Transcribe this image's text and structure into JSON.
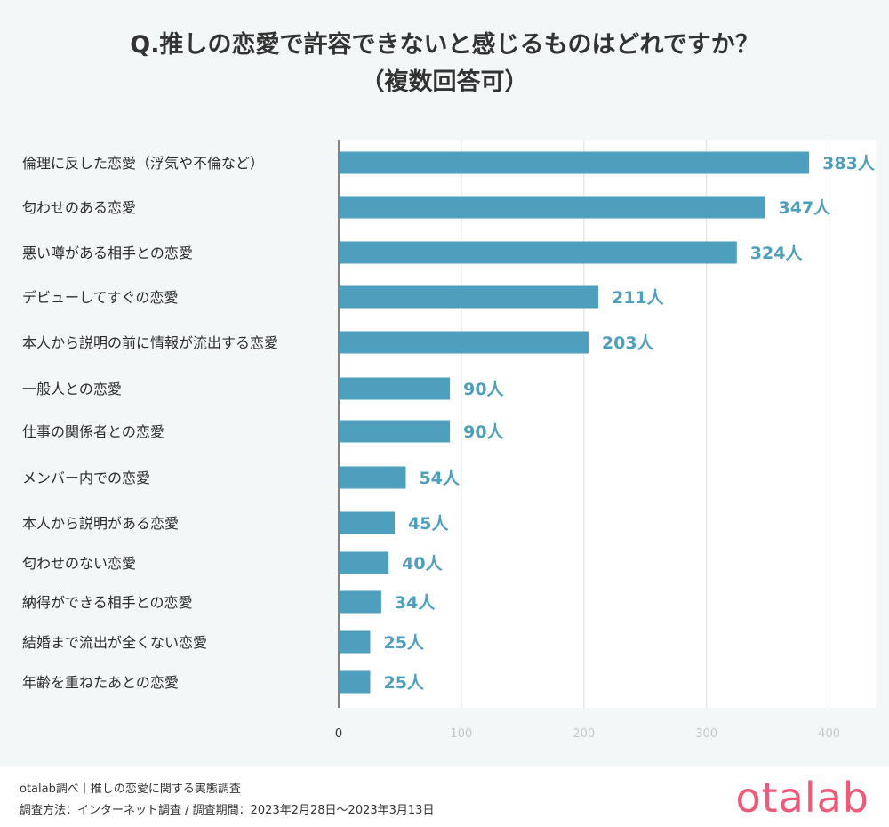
{
  "title_line1": "Q.推しの恋愛で許容できないと感じるものはどれですか？",
  "title_line2": "（複数回答可）",
  "chart_data": {
    "type": "bar",
    "orientation": "horizontal",
    "categories": [
      "倫理に反した恋愛（浮気や不倫など）",
      "匂わせのある恋愛",
      "悪い噂がある相手との恋愛",
      "デビューしてすぐの恋愛",
      "本人から説明の前に情報が流出する恋愛",
      "一般人との恋愛",
      "仕事の関係者との恋愛",
      "メンバー内での恋愛",
      "本人から説明がある恋愛",
      "匂わせのない恋愛",
      "納得ができる相手との恋愛",
      "結婚まで流出が全くない恋愛",
      "年齢を重ねたあとの恋愛"
    ],
    "values": [
      383,
      347,
      324,
      211,
      203,
      90,
      90,
      54,
      45,
      40,
      34,
      25,
      25
    ],
    "value_labels": [
      "383人",
      "347人",
      "324人",
      "211人",
      "203人",
      "90人",
      "90人",
      "54人",
      "45人",
      "40人",
      "34人",
      "25人",
      "25人"
    ],
    "x_ticks": [
      "0",
      "100",
      "200",
      "300",
      "400"
    ],
    "xlim": [
      0,
      440
    ],
    "grid": true,
    "bar_color": "#4e9fbd",
    "label_color": "#4e9fbd"
  },
  "footer": {
    "source_line1": "otalab調べ｜推しの恋愛に関する実態調査",
    "source_line2": "調査方法：インターネット調査 / 調査期間：2023年2月28日〜2023年3月13日",
    "logo": "otalab"
  }
}
